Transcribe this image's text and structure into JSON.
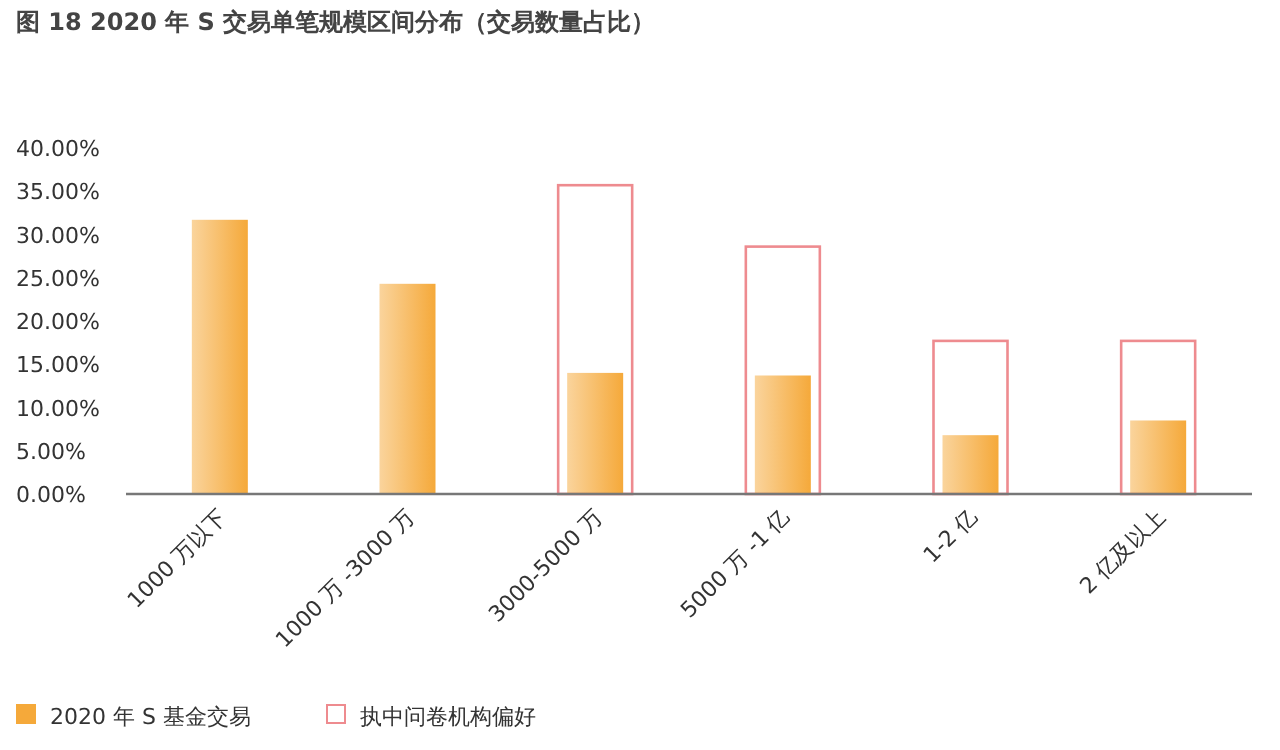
{
  "chart_data": {
    "type": "bar",
    "title": "图 18 2020 年 S 交易单笔规模区间分布（交易数量占比）",
    "categories": [
      "1000 万以下",
      "1000 万 -3000 万",
      "3000-5000 万",
      "5000 万 -1 亿",
      "1-2 亿",
      "2 亿及以上"
    ],
    "series": [
      {
        "name": "执中问卷机构偏好",
        "color": "#ee8b8f",
        "values": [
          null,
          null,
          35.7,
          28.6,
          17.7,
          17.7
        ]
      },
      {
        "name": "2020 年 S 基金交易",
        "color": "#f5a93a",
        "values": [
          31.7,
          24.3,
          14.0,
          13.7,
          6.8,
          8.5
        ]
      }
    ],
    "ylim": [
      0,
      40
    ],
    "yticks": [
      {
        "value": 0,
        "label": "0.00%"
      },
      {
        "value": 5,
        "label": "5.00%"
      },
      {
        "value": 10,
        "label": "10.00%"
      },
      {
        "value": 15,
        "label": "15.00%"
      },
      {
        "value": 20,
        "label": "20.00%"
      },
      {
        "value": 25,
        "label": "25.00%"
      },
      {
        "value": 30,
        "label": "30.00%"
      },
      {
        "value": 35,
        "label": "35.00%"
      },
      {
        "value": 40,
        "label": "40.00%"
      }
    ],
    "grid": false,
    "legend": "bottom left"
  }
}
